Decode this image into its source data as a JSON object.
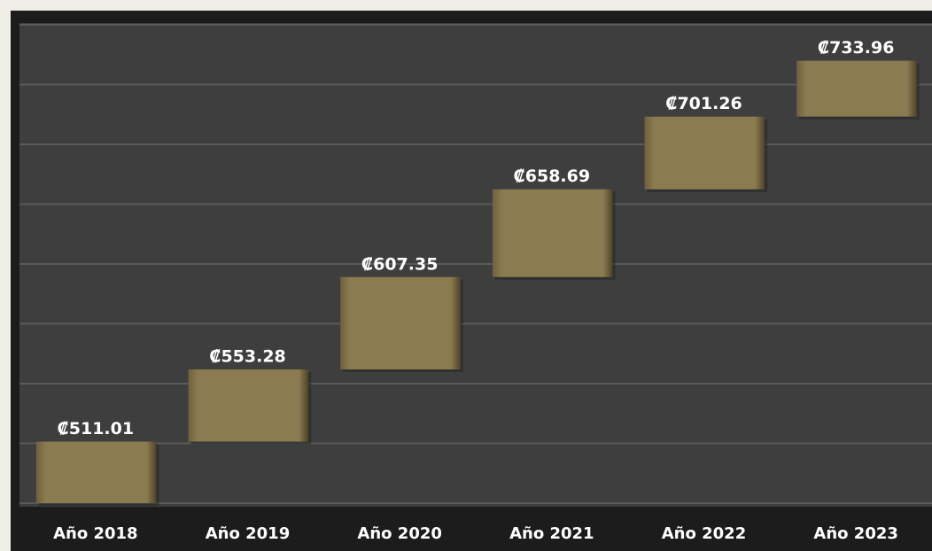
{
  "chart_data": {
    "type": "waterfall",
    "categories": [
      "Año 2018",
      "Año 2019",
      "Año 2020",
      "Año 2021",
      "Año 2022",
      "Año 2023"
    ],
    "values": [
      511.01,
      553.28,
      607.35,
      658.69,
      701.26,
      733.96
    ],
    "value_labels": [
      "₡511.01",
      "₡553.28",
      "₡607.35",
      "₡658.69",
      "₡701.26",
      "₡733.96"
    ],
    "color": "#8b7b50",
    "ylim": [
      475,
      755
    ],
    "yticks": [
      475,
      510,
      545,
      580,
      615,
      650,
      685,
      720,
      755
    ],
    "grid": true
  }
}
